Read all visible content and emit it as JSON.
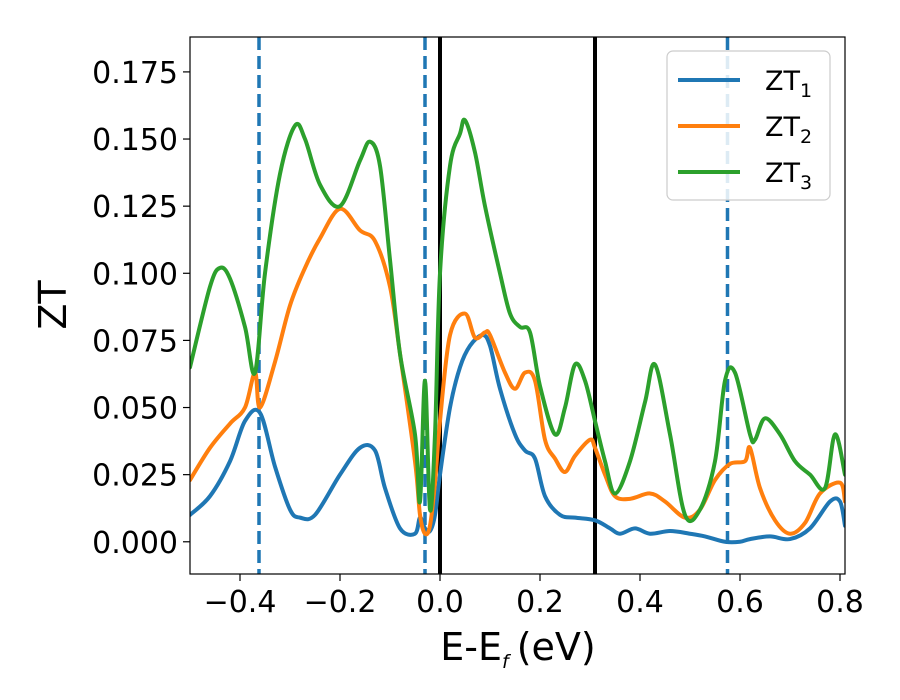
{
  "chart_data": {
    "type": "line",
    "xlabel": "E-E",
    "xlabel_sub": "f",
    "xlabel_unit": "(eV)",
    "ylabel": "ZT",
    "xlim": [
      -0.5,
      0.81
    ],
    "ylim": [
      -0.012,
      0.188
    ],
    "xticks": [
      -0.4,
      -0.2,
      0.0,
      0.2,
      0.4,
      0.6,
      0.8
    ],
    "xtick_labels": [
      "−0.4",
      "−0.2",
      "0.0",
      "0.2",
      "0.4",
      "0.6",
      "0.8"
    ],
    "yticks": [
      0.0,
      0.025,
      0.05,
      0.075,
      0.1,
      0.125,
      0.15,
      0.175
    ],
    "ytick_labels": [
      "0.000",
      "0.025",
      "0.050",
      "0.075",
      "0.100",
      "0.125",
      "0.150",
      "0.175"
    ],
    "legend_position": "top-right",
    "vertical_lines": [
      {
        "x": -0.362,
        "style": "dashed",
        "color": "#1f77b4"
      },
      {
        "x": -0.03,
        "style": "dashed",
        "color": "#1f77b4"
      },
      {
        "x": 0.575,
        "style": "dashed",
        "color": "#1f77b4"
      },
      {
        "x": 0.0,
        "style": "solid",
        "color": "#000000"
      },
      {
        "x": 0.31,
        "style": "solid",
        "color": "#000000"
      }
    ],
    "series": [
      {
        "name": "ZT",
        "sub": "1",
        "color": "#1f77b4",
        "x": [
          -0.5,
          -0.46,
          -0.42,
          -0.39,
          -0.36,
          -0.33,
          -0.3,
          -0.28,
          -0.25,
          -0.2,
          -0.16,
          -0.13,
          -0.11,
          -0.08,
          -0.05,
          -0.04,
          -0.03,
          -0.02,
          -0.01,
          0.0,
          0.02,
          0.04,
          0.06,
          0.085,
          0.1,
          0.12,
          0.15,
          0.17,
          0.19,
          0.21,
          0.24,
          0.27,
          0.31,
          0.34,
          0.36,
          0.39,
          0.42,
          0.46,
          0.5,
          0.53,
          0.57,
          0.6,
          0.62,
          0.66,
          0.7,
          0.74,
          0.78,
          0.8,
          0.81
        ],
        "values": [
          0.01,
          0.017,
          0.03,
          0.045,
          0.048,
          0.028,
          0.012,
          0.009,
          0.01,
          0.025,
          0.035,
          0.034,
          0.02,
          0.005,
          0.003,
          0.009,
          0.005,
          0.004,
          0.01,
          0.025,
          0.05,
          0.065,
          0.073,
          0.077,
          0.073,
          0.057,
          0.04,
          0.034,
          0.031,
          0.017,
          0.01,
          0.009,
          0.008,
          0.005,
          0.003,
          0.005,
          0.003,
          0.004,
          0.003,
          0.002,
          0.0,
          0.0,
          0.001,
          0.002,
          0.001,
          0.005,
          0.015,
          0.015,
          0.006
        ]
      },
      {
        "name": "ZT",
        "sub": "2",
        "color": "#ff7f0e",
        "x": [
          -0.5,
          -0.46,
          -0.42,
          -0.39,
          -0.37,
          -0.36,
          -0.33,
          -0.3,
          -0.27,
          -0.24,
          -0.2,
          -0.16,
          -0.13,
          -0.1,
          -0.08,
          -0.05,
          -0.04,
          -0.03,
          -0.02,
          -0.01,
          0.0,
          0.02,
          0.05,
          0.07,
          0.09,
          0.1,
          0.13,
          0.15,
          0.17,
          0.19,
          0.21,
          0.23,
          0.25,
          0.27,
          0.3,
          0.31,
          0.33,
          0.35,
          0.38,
          0.42,
          0.45,
          0.49,
          0.52,
          0.55,
          0.58,
          0.61,
          0.62,
          0.64,
          0.67,
          0.7,
          0.73,
          0.76,
          0.8,
          0.81
        ],
        "values": [
          0.023,
          0.035,
          0.044,
          0.05,
          0.063,
          0.05,
          0.067,
          0.088,
          0.102,
          0.113,
          0.124,
          0.116,
          0.112,
          0.095,
          0.07,
          0.03,
          0.01,
          0.003,
          0.006,
          0.022,
          0.045,
          0.077,
          0.085,
          0.076,
          0.078,
          0.077,
          0.063,
          0.057,
          0.063,
          0.06,
          0.038,
          0.031,
          0.026,
          0.032,
          0.038,
          0.035,
          0.025,
          0.017,
          0.016,
          0.018,
          0.015,
          0.009,
          0.012,
          0.023,
          0.029,
          0.03,
          0.035,
          0.02,
          0.008,
          0.003,
          0.007,
          0.018,
          0.022,
          0.015
        ]
      },
      {
        "name": "ZT",
        "sub": "3",
        "color": "#2ca02c",
        "x": [
          -0.5,
          -0.46,
          -0.44,
          -0.42,
          -0.39,
          -0.37,
          -0.35,
          -0.32,
          -0.29,
          -0.27,
          -0.24,
          -0.2,
          -0.16,
          -0.14,
          -0.12,
          -0.1,
          -0.08,
          -0.05,
          -0.04,
          -0.03,
          -0.02,
          -0.01,
          0.0,
          0.02,
          0.04,
          0.05,
          0.07,
          0.09,
          0.12,
          0.14,
          0.16,
          0.18,
          0.2,
          0.23,
          0.25,
          0.27,
          0.29,
          0.31,
          0.33,
          0.35,
          0.38,
          0.41,
          0.43,
          0.46,
          0.49,
          0.52,
          0.55,
          0.57,
          0.59,
          0.62,
          0.63,
          0.65,
          0.68,
          0.71,
          0.74,
          0.77,
          0.79,
          0.81
        ],
        "values": [
          0.065,
          0.095,
          0.102,
          0.098,
          0.08,
          0.063,
          0.1,
          0.137,
          0.155,
          0.15,
          0.133,
          0.125,
          0.142,
          0.149,
          0.14,
          0.105,
          0.07,
          0.04,
          0.015,
          0.06,
          0.012,
          0.04,
          0.1,
          0.14,
          0.152,
          0.157,
          0.145,
          0.125,
          0.1,
          0.085,
          0.08,
          0.078,
          0.058,
          0.04,
          0.05,
          0.066,
          0.06,
          0.045,
          0.03,
          0.018,
          0.03,
          0.052,
          0.066,
          0.04,
          0.01,
          0.012,
          0.03,
          0.06,
          0.063,
          0.04,
          0.038,
          0.046,
          0.04,
          0.03,
          0.025,
          0.02,
          0.04,
          0.025
        ]
      }
    ]
  }
}
